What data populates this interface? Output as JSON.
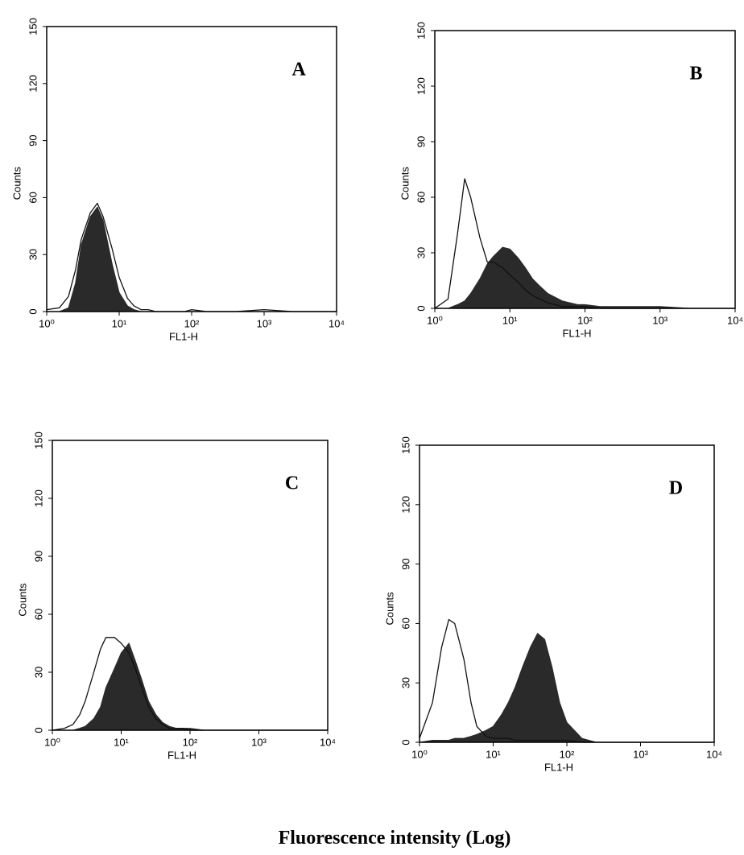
{
  "chart_data": [
    {
      "type": "area",
      "title": "A",
      "xlabel": "FL1-H",
      "ylabel": "Counts",
      "xlog": true,
      "xlim": [
        1,
        10000
      ],
      "xticks": [
        {
          "value": 1,
          "label": "10⁰"
        },
        {
          "value": 10,
          "label": "10¹"
        },
        {
          "value": 100,
          "label": "10²"
        },
        {
          "value": 1000,
          "label": "10³"
        },
        {
          "value": 10000,
          "label": "10⁴"
        }
      ],
      "ylim": [
        0,
        150
      ],
      "yticks": [
        0,
        30,
        60,
        90,
        120,
        150
      ],
      "x": [
        1,
        1.5,
        2,
        2.5,
        3,
        4,
        5,
        6,
        8,
        10,
        13,
        16,
        20,
        25,
        32,
        40,
        50,
        63,
        80,
        100,
        160,
        250,
        400,
        1000,
        2500,
        10000
      ],
      "series": [
        {
          "color": "#2a2a2a",
          "filled": true,
          "values": [
            0,
            0,
            2,
            15,
            35,
            50,
            55,
            48,
            25,
            10,
            3,
            1,
            0,
            0,
            0,
            0,
            0,
            0,
            0,
            0,
            0,
            0,
            0,
            0,
            0,
            0
          ]
        },
        {
          "color": "#111111",
          "filled": false,
          "values": [
            1,
            2,
            8,
            22,
            38,
            52,
            57,
            50,
            33,
            18,
            7,
            3,
            1,
            1,
            0,
            0,
            0,
            0,
            0,
            1,
            0,
            0,
            0,
            1,
            0,
            0
          ]
        }
      ]
    },
    {
      "type": "area",
      "title": "B",
      "xlabel": "FL1-H",
      "ylabel": "Counts",
      "xlog": true,
      "xlim": [
        1,
        10000
      ],
      "xticks": [
        {
          "value": 1,
          "label": "10⁰"
        },
        {
          "value": 10,
          "label": "10¹"
        },
        {
          "value": 100,
          "label": "10²"
        },
        {
          "value": 1000,
          "label": "10³"
        },
        {
          "value": 10000,
          "label": "10⁴"
        }
      ],
      "ylim": [
        0,
        150
      ],
      "yticks": [
        0,
        30,
        60,
        90,
        120,
        150
      ],
      "x": [
        1,
        1.5,
        2,
        2.5,
        3,
        4,
        5,
        6,
        8,
        10,
        13,
        16,
        20,
        25,
        32,
        40,
        50,
        63,
        80,
        100,
        160,
        250,
        400,
        1000,
        2500,
        10000
      ],
      "series": [
        {
          "color": "#2a2a2a",
          "filled": true,
          "values": [
            0,
            0,
            2,
            4,
            8,
            16,
            24,
            28,
            33,
            32,
            27,
            22,
            16,
            12,
            8,
            6,
            4,
            3,
            2,
            2,
            1,
            1,
            1,
            1,
            0,
            0
          ]
        },
        {
          "color": "#111111",
          "filled": false,
          "values": [
            0,
            5,
            40,
            70,
            60,
            38,
            25,
            25,
            22,
            18,
            14,
            10,
            7,
            5,
            3,
            2,
            1,
            1,
            1,
            1,
            0,
            0,
            0,
            0,
            0,
            0
          ]
        }
      ]
    },
    {
      "type": "area",
      "title": "C",
      "xlabel": "FL1-H",
      "ylabel": "Counts",
      "xlog": true,
      "xlim": [
        1,
        10000
      ],
      "xticks": [
        {
          "value": 1,
          "label": "10⁰"
        },
        {
          "value": 10,
          "label": "10¹"
        },
        {
          "value": 100,
          "label": "10²"
        },
        {
          "value": 1000,
          "label": "10³"
        },
        {
          "value": 10000,
          "label": "10⁴"
        }
      ],
      "ylim": [
        0,
        150
      ],
      "yticks": [
        0,
        30,
        60,
        90,
        120,
        150
      ],
      "x": [
        1,
        1.5,
        2,
        2.5,
        3,
        4,
        5,
        6,
        8,
        10,
        13,
        16,
        20,
        25,
        32,
        40,
        50,
        63,
        80,
        100,
        160,
        250,
        400,
        1000,
        2500,
        10000
      ],
      "series": [
        {
          "color": "#2a2a2a",
          "filled": true,
          "values": [
            0,
            0,
            0,
            1,
            2,
            6,
            12,
            22,
            32,
            40,
            45,
            36,
            26,
            15,
            8,
            4,
            2,
            1,
            1,
            1,
            0,
            0,
            0,
            0,
            0,
            0
          ]
        },
        {
          "color": "#111111",
          "filled": false,
          "values": [
            0,
            1,
            3,
            8,
            15,
            30,
            42,
            48,
            48,
            45,
            40,
            32,
            22,
            12,
            6,
            3,
            1,
            1,
            1,
            0,
            0,
            0,
            0,
            0,
            0,
            0
          ]
        }
      ]
    },
    {
      "type": "area",
      "title": "D",
      "xlabel": "FL1-H",
      "ylabel": "Counts",
      "xlog": true,
      "xlim": [
        1,
        10000
      ],
      "xticks": [
        {
          "value": 1,
          "label": "10⁰"
        },
        {
          "value": 10,
          "label": "10¹"
        },
        {
          "value": 100,
          "label": "10²"
        },
        {
          "value": 1000,
          "label": "10³"
        },
        {
          "value": 10000,
          "label": "10⁴"
        }
      ],
      "ylim": [
        0,
        150
      ],
      "yticks": [
        0,
        30,
        60,
        90,
        120,
        150
      ],
      "x": [
        1,
        1.5,
        2,
        2.5,
        3,
        4,
        5,
        6,
        8,
        10,
        13,
        16,
        20,
        25,
        32,
        40,
        50,
        63,
        80,
        100,
        160,
        250,
        400,
        1000,
        2500,
        10000
      ],
      "series": [
        {
          "color": "#2a2a2a",
          "filled": true,
          "values": [
            0,
            1,
            1,
            1,
            2,
            2,
            3,
            4,
            6,
            8,
            14,
            20,
            28,
            38,
            48,
            55,
            52,
            38,
            20,
            10,
            2,
            0,
            0,
            0,
            0,
            0
          ]
        },
        {
          "color": "#111111",
          "filled": false,
          "values": [
            2,
            20,
            48,
            62,
            60,
            42,
            20,
            8,
            3,
            2,
            2,
            2,
            1,
            1,
            1,
            1,
            1,
            1,
            1,
            1,
            0,
            0,
            0,
            0,
            0,
            0
          ]
        }
      ]
    }
  ],
  "caption": "Fluorescence intensity (Log)"
}
